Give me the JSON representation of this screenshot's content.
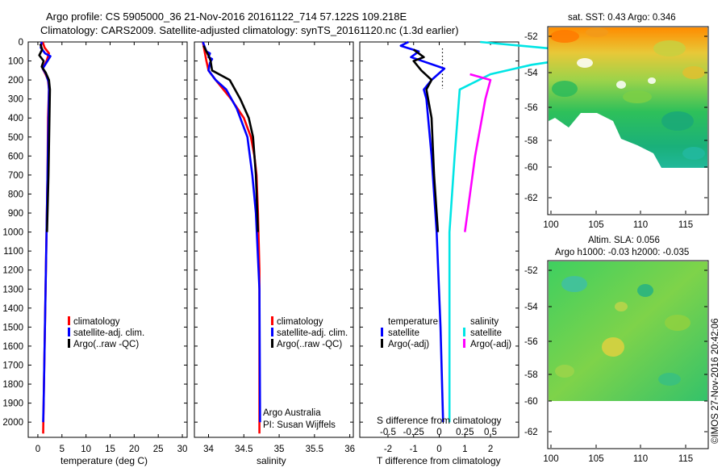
{
  "title_line1": "Argo profile: CS 5905000_36 21-Nov-2016 20161122_714 57.122S 109.218E",
  "title_line2": "Climatology: CARS2009. Satellite-adjusted climatology: synTS_20161120.nc (1.3d earlier)",
  "side_stamp": "©IMOS 27-Nov-2016 20:42:06",
  "colors": {
    "climatology": "#ff0000",
    "satellite": "#0000ff",
    "argo": "#000000",
    "sat_s": "#00e5e5",
    "argo_s": "#ff00ff"
  },
  "depth_ticks": [
    "0",
    "100",
    "200",
    "300",
    "400",
    "500",
    "600",
    "700",
    "800",
    "900",
    "1000",
    "1100",
    "1200",
    "1300",
    "1400",
    "1500",
    "1600",
    "1700",
    "1800",
    "1900",
    "2000"
  ],
  "chart_data": [
    {
      "type": "line",
      "xlabel": "temperature (deg C)",
      "xticks": [
        "0",
        "5",
        "10",
        "15",
        "20",
        "25",
        "30"
      ],
      "xlim": [
        -2,
        31
      ],
      "ylim": [
        2080,
        0
      ],
      "legend": [
        "climatology",
        "satellite-adj. clim.",
        "Argo(..raw -QC)"
      ],
      "series": [
        {
          "name": "climatology",
          "color": "#ff0000",
          "points": [
            [
              1.0,
              0
            ],
            [
              1.4,
              30
            ],
            [
              2.3,
              60
            ],
            [
              1.8,
              100
            ],
            [
              1.0,
              140
            ],
            [
              1.6,
              170
            ],
            [
              2.1,
              200
            ],
            [
              2.3,
              250
            ],
            [
              2.1,
              400
            ],
            [
              2.0,
              700
            ],
            [
              1.8,
              1000
            ],
            [
              1.6,
              1300
            ],
            [
              1.4,
              1600
            ],
            [
              1.2,
              1900
            ],
            [
              1.1,
              2060
            ]
          ]
        },
        {
          "name": "satellite-adj. clim.",
          "color": "#0000ff",
          "points": [
            [
              0.8,
              0
            ],
            [
              0.6,
              30
            ],
            [
              1.5,
              60
            ],
            [
              2.6,
              75
            ],
            [
              2.0,
              100
            ],
            [
              1.0,
              140
            ],
            [
              1.7,
              170
            ],
            [
              2.2,
              210
            ],
            [
              2.3,
              250
            ],
            [
              2.2,
              400
            ],
            [
              2.0,
              700
            ],
            [
              1.8,
              1000
            ],
            [
              1.6,
              1300
            ],
            [
              1.4,
              1600
            ],
            [
              1.2,
              1900
            ],
            [
              1.1,
              2000
            ]
          ]
        },
        {
          "name": "Argo(..raw -QC)",
          "color": "#000000",
          "points": [
            [
              0.5,
              10
            ],
            [
              0.9,
              40
            ],
            [
              0.3,
              70
            ],
            [
              1.2,
              100
            ],
            [
              0.8,
              130
            ],
            [
              1.6,
              160
            ],
            [
              2.3,
              200
            ],
            [
              2.5,
              250
            ],
            [
              2.4,
              400
            ],
            [
              2.2,
              700
            ],
            [
              1.9,
              1000
            ]
          ]
        }
      ]
    },
    {
      "type": "line",
      "xlabel": "salinity",
      "xticks": [
        "34",
        "34.5",
        "35",
        "35.5",
        "36"
      ],
      "xlim": [
        33.8,
        36.05
      ],
      "ylim": [
        2080,
        0
      ],
      "legend": [
        "climatology",
        "satellite-adj. clim.",
        "Argo(..raw -QC)"
      ],
      "annotation": [
        "Argo Australia",
        "PI: Susan Wijffels"
      ],
      "series": [
        {
          "name": "climatology",
          "color": "#ff0000",
          "points": [
            [
              33.92,
              0
            ],
            [
              33.95,
              60
            ],
            [
              33.97,
              100
            ],
            [
              34.0,
              150
            ],
            [
              34.1,
              200
            ],
            [
              34.32,
              300
            ],
            [
              34.5,
              400
            ],
            [
              34.6,
              500
            ],
            [
              34.65,
              600
            ],
            [
              34.68,
              700
            ],
            [
              34.7,
              900
            ],
            [
              34.72,
              1200
            ],
            [
              34.72,
              2060
            ]
          ]
        },
        {
          "name": "satellite-adj. clim.",
          "color": "#0000ff",
          "points": [
            [
              33.92,
              0
            ],
            [
              33.97,
              50
            ],
            [
              34.02,
              60
            ],
            [
              34.0,
              80
            ],
            [
              34.05,
              90
            ],
            [
              34.02,
              110
            ],
            [
              34.0,
              150
            ],
            [
              34.1,
              200
            ],
            [
              34.25,
              250
            ],
            [
              34.4,
              350
            ],
            [
              34.55,
              500
            ],
            [
              34.62,
              700
            ],
            [
              34.67,
              900
            ],
            [
              34.72,
              1300
            ],
            [
              34.73,
              2000
            ]
          ]
        },
        {
          "name": "Argo(..raw -QC)",
          "color": "#000000",
          "points": [
            [
              33.93,
              20
            ],
            [
              34.01,
              80
            ],
            [
              34.03,
              100
            ],
            [
              34.05,
              150
            ],
            [
              34.3,
              200
            ],
            [
              34.45,
              300
            ],
            [
              34.57,
              400
            ],
            [
              34.63,
              500
            ],
            [
              34.67,
              700
            ],
            [
              34.7,
              1000
            ]
          ]
        }
      ]
    },
    {
      "type": "line",
      "xlabel": "T difference from climatology",
      "xlabel_top": "S difference from climatology",
      "xticks": [
        "-2",
        "-1",
        "0",
        "1",
        "2"
      ],
      "xticks_top": [
        "-0.5",
        "-0.25",
        "0",
        "0.25",
        "0.5"
      ],
      "xlim": [
        -3.1,
        3.1
      ],
      "ylim": [
        2080,
        0
      ],
      "legend_headers": [
        "temperature",
        "salinity"
      ],
      "legend": [
        "satellite",
        "Argo(-adj)",
        "satellite",
        "Argo(-adj)"
      ],
      "series": [
        {
          "name": "satellite",
          "quantity": "temperature",
          "color": "#0000ff",
          "points": [
            [
              -1.2,
              0
            ],
            [
              -1.5,
              20
            ],
            [
              -0.8,
              50
            ],
            [
              -1.1,
              80
            ],
            [
              0.2,
              140
            ],
            [
              -0.3,
              200
            ],
            [
              -0.6,
              250
            ],
            [
              -0.5,
              300
            ],
            [
              -0.3,
              600
            ],
            [
              -0.1,
              1000
            ],
            [
              0.05,
              1500
            ],
            [
              0.15,
              2000
            ]
          ]
        },
        {
          "name": "Argo(-adj)",
          "quantity": "temperature",
          "color": "#000000",
          "points": [
            [
              -1.0,
              40
            ],
            [
              -0.6,
              80
            ],
            [
              -1.0,
              100
            ],
            [
              -0.7,
              150
            ],
            [
              -0.3,
              200
            ],
            [
              -0.5,
              250
            ],
            [
              -0.3,
              400
            ],
            [
              -0.2,
              700
            ],
            [
              -0.05,
              1000
            ]
          ]
        },
        {
          "name": "satellite",
          "quantity": "salinity",
          "color": "#00e5e5",
          "points": [
            [
              0.4,
              0
            ],
            [
              1.2,
              40
            ],
            [
              1.4,
              80
            ],
            [
              0.9,
              120
            ],
            [
              0.5,
              170
            ],
            [
              0.2,
              250
            ],
            [
              0.15,
              600
            ],
            [
              0.1,
              1000
            ],
            [
              0.1,
              1500
            ],
            [
              0.1,
              2000
            ]
          ]
        },
        {
          "name": "Argo(-adj)",
          "quantity": "salinity",
          "color": "#ff00ff",
          "points": [
            [
              0.3,
              170
            ],
            [
              0.5,
              200
            ],
            [
              0.45,
              300
            ],
            [
              0.35,
              600
            ],
            [
              0.25,
              1000
            ]
          ]
        }
      ]
    }
  ],
  "maps": {
    "sst_title": "sat. SST: 0.43 Argo: 0.346",
    "sla_title1": "Altim. SLA: 0.056",
    "sla_title2": "Argo h1000: -0.03 h2000: -0.035",
    "lat_ticks": [
      "-52",
      "-54",
      "-56",
      "-58",
      "-60",
      "-62"
    ],
    "lon_ticks": [
      "100",
      "105",
      "110",
      "115"
    ]
  }
}
